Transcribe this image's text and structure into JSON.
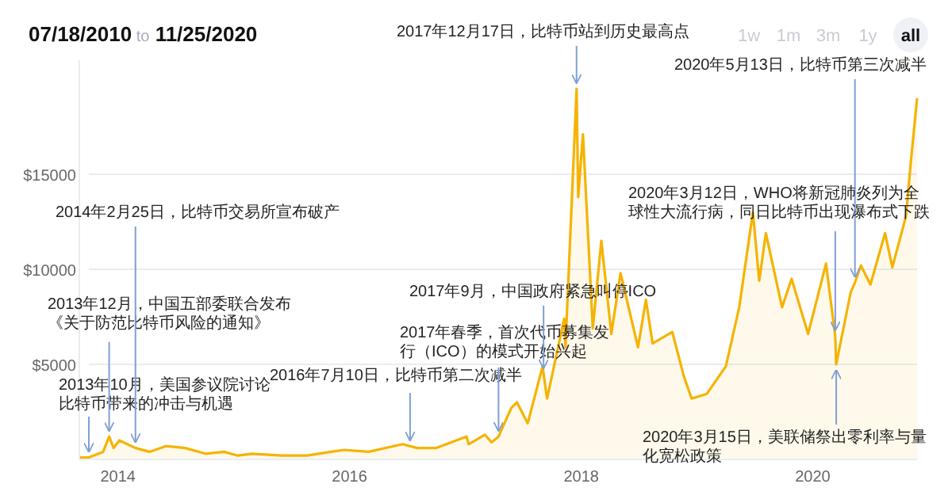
{
  "chart_data": {
    "type": "area",
    "title": "07/18/2010 to 11/25/2020",
    "x": [
      "2013-09-01",
      "2013-10-01",
      "2013-11-15",
      "2013-12-04",
      "2013-12-18",
      "2014-01-05",
      "2014-02-25",
      "2014-04-10",
      "2014-06-01",
      "2014-08-01",
      "2014-10-05",
      "2014-12-01",
      "2015-01-14",
      "2015-03-01",
      "2015-06-01",
      "2015-08-20",
      "2015-11-04",
      "2015-12-15",
      "2016-03-01",
      "2016-06-17",
      "2016-07-10",
      "2016-08-02",
      "2016-10-01",
      "2017-01-04",
      "2017-01-11",
      "2017-03-03",
      "2017-03-24",
      "2017-04-15",
      "2017-05-25",
      "2017-06-12",
      "2017-07-16",
      "2017-09-01",
      "2017-09-04",
      "2017-09-15",
      "2017-11-08",
      "2017-11-12",
      "2017-12-17",
      "2017-12-22",
      "2018-01-06",
      "2018-02-06",
      "2018-03-05",
      "2018-04-06",
      "2018-05-05",
      "2018-06-29",
      "2018-07-24",
      "2018-08-14",
      "2018-10-15",
      "2018-11-20",
      "2018-12-15",
      "2019-02-01",
      "2019-04-02",
      "2019-05-14",
      "2019-06-26",
      "2019-07-16",
      "2019-08-06",
      "2019-09-26",
      "2019-10-26",
      "2019-12-17",
      "2020-02-12",
      "2020-03-12",
      "2020-03-15",
      "2020-04-30",
      "2020-05-13",
      "2020-06-01",
      "2020-07-01",
      "2020-08-16",
      "2020-09-08",
      "2020-10-21",
      "2020-11-05",
      "2020-11-25"
    ],
    "series": [
      {
        "color": "#f5b301",
        "values": [
          100,
          100,
          400,
          1200,
          600,
          1000,
          600,
          400,
          700,
          600,
          300,
          400,
          200,
          300,
          200,
          200,
          400,
          500,
          400,
          800,
          700,
          600,
          600,
          1200,
          800,
          1300,
          900,
          1200,
          2700,
          3000,
          1900,
          4900,
          4500,
          3200,
          7400,
          5900,
          19500,
          13800,
          17100,
          6900,
          11500,
          6600,
          9800,
          5900,
          8400,
          6100,
          6700,
          4400,
          3200,
          3450,
          4900,
          8000,
          13000,
          9400,
          11900,
          8000,
          9500,
          6600,
          10300,
          6500,
          5000,
          8800,
          9300,
          10200,
          9200,
          11900,
          10100,
          12800,
          15600,
          19000
        ]
      }
    ],
    "xlim": [
      "2013-09-01",
      "2020-11-25"
    ],
    "xticks": [
      {
        "value": "2014-01-01",
        "label": "2014"
      },
      {
        "value": "2016-01-01",
        "label": "2016"
      },
      {
        "value": "2018-01-01",
        "label": "2018"
      },
      {
        "value": "2020-01-01",
        "label": "2020"
      }
    ],
    "ylim": [
      0,
      21000
    ],
    "yticks": [
      {
        "value": 5000,
        "label": "$5000"
      },
      {
        "value": 10000,
        "label": "$10000"
      },
      {
        "value": 15000,
        "label": "$15000"
      }
    ],
    "grid": "y",
    "annotations": [
      {
        "text": "2013年10月，美国参议院讨论比特币带来的冲击与机遇",
        "x": "2013-10-01",
        "y": 100
      },
      {
        "text": "2013年12月，中国五部委联合发布《关于防范比特币风险的通知》",
        "x": "2013-12-04",
        "y": 1200
      },
      {
        "text": "2014年2月25日，比特币交易所宣布破产",
        "x": "2014-02-25",
        "y": 600
      },
      {
        "text": "2016年7月10日，比特币第二次减半",
        "x": "2016-07-10",
        "y": 700
      },
      {
        "text": "2017年春季，首次代币募集发行（ICO）的模式开始兴起",
        "x": "2017-04-15",
        "y": 1200
      },
      {
        "text": "2017年9月，中国政府紧急叫停ICO",
        "x": "2017-09-04",
        "y": 4500
      },
      {
        "text": "2017年12月17日，比特币站到历史最高点",
        "x": "2017-12-17",
        "y": 19500
      },
      {
        "text": "2020年5月13日，比特币第三次减半",
        "x": "2020-05-13",
        "y": 9300
      },
      {
        "text": "2020年3月12日，WHO将新冠肺炎列为全球性大流行病，同日比特币出现瀑布式下跌",
        "x": "2020-03-12",
        "y": 6500
      },
      {
        "text": "2020年3月15日，美联储祭出零利率与量化宽松政策",
        "x": "2020-03-15",
        "y": 5000
      },
      "1w",
      "1m",
      "3m",
      "1y",
      "all"
    ]
  }
}
